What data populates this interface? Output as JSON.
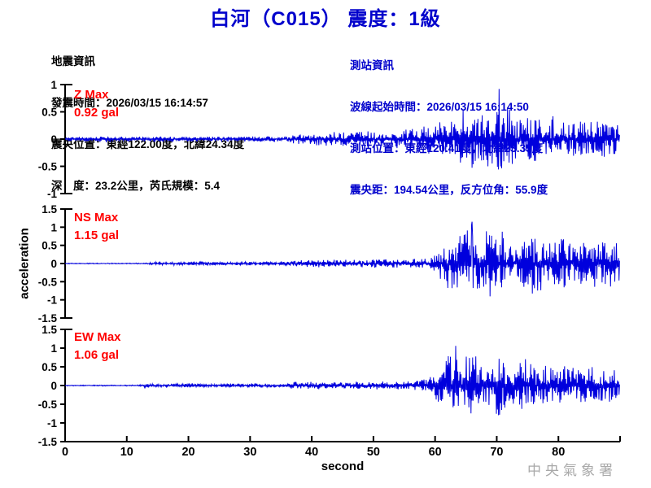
{
  "title": "白河（C015） 震度：1級",
  "quake_info": {
    "heading": "地震資訊",
    "lines": [
      "發震時間：2026/03/15 16:14:57",
      "震央位置：東經122.00度，北緯24.34度",
      "深　度：23.2公里，芮氏規模：5.4"
    ]
  },
  "station_info": {
    "heading": "測站資訊",
    "lines": [
      "波線起始時間：2026/03/15 16:14:50",
      "測站位置：東經120.41度，北緯23.35度",
      "震央距：194.54公里，反方位角：55.9度"
    ]
  },
  "footer": {
    "agency": "中央氣象署"
  },
  "colors": {
    "title_blue": "#0000cc",
    "info_blue": "#0000cc",
    "wave_blue": "#0000dd",
    "max_red": "#ff0000",
    "axis_black": "#000000",
    "agency_gray": "#a9a9a9"
  },
  "chart_data": {
    "type": "line",
    "title": "白河（C015） 震度：1級",
    "xlabel": "second",
    "ylabel": "acceleration",
    "x_range": [
      0,
      90
    ],
    "x_ticks": [
      0,
      10,
      20,
      30,
      40,
      50,
      60,
      70,
      80
    ],
    "grid": false,
    "legend": "none",
    "panels": [
      {
        "channel": "Z",
        "max_label": "Z Max",
        "max_value": "0.92 gal",
        "max_gal": 0.92,
        "peak_time_s": 70.3,
        "ylim": [
          -1,
          1
        ],
        "y_ticks": [
          1,
          0.5,
          0,
          -0.5,
          -1
        ],
        "envelope_gal": [
          [
            0,
            0.025
          ],
          [
            1.5,
            0.04
          ],
          [
            5.5,
            0.055
          ],
          [
            7,
            0.07
          ],
          [
            8,
            0.045
          ],
          [
            14,
            0.05
          ],
          [
            20,
            0.045
          ],
          [
            30,
            0.05
          ],
          [
            36,
            0.05
          ],
          [
            37.5,
            0.09
          ],
          [
            39,
            0.13
          ],
          [
            42,
            0.12
          ],
          [
            46,
            0.13
          ],
          [
            50,
            0.15
          ],
          [
            54,
            0.16
          ],
          [
            57,
            0.2
          ],
          [
            59,
            0.26
          ],
          [
            61,
            0.32
          ],
          [
            63,
            0.38
          ],
          [
            64,
            0.45
          ],
          [
            64.6,
            0.6
          ],
          [
            65.2,
            0.42
          ],
          [
            66.2,
            0.58
          ],
          [
            67,
            0.4
          ],
          [
            68.5,
            0.48
          ],
          [
            69.8,
            0.5
          ],
          [
            70.3,
            0.92
          ],
          [
            70.9,
            0.55
          ],
          [
            71.8,
            0.72
          ],
          [
            72.5,
            0.45
          ],
          [
            74.5,
            0.4
          ],
          [
            76,
            0.45
          ],
          [
            77.5,
            0.36
          ],
          [
            79,
            0.42
          ],
          [
            80.5,
            0.32
          ],
          [
            82,
            0.36
          ],
          [
            84,
            0.3
          ],
          [
            86,
            0.34
          ],
          [
            88,
            0.3
          ],
          [
            90,
            0.28
          ]
        ]
      },
      {
        "channel": "NS",
        "max_label": "NS Max",
        "max_value": "1.15 gal",
        "max_gal": 1.15,
        "peak_time_s": 66,
        "ylim": [
          -1.5,
          1.5
        ],
        "y_ticks": [
          1.5,
          1,
          0.5,
          0,
          -0.5,
          -1,
          -1.5
        ],
        "envelope_gal": [
          [
            0,
            0.012
          ],
          [
            13,
            0.015
          ],
          [
            15,
            0.05
          ],
          [
            22,
            0.055
          ],
          [
            30,
            0.05
          ],
          [
            36,
            0.06
          ],
          [
            38.5,
            0.1
          ],
          [
            42,
            0.11
          ],
          [
            47,
            0.1
          ],
          [
            52,
            0.12
          ],
          [
            56,
            0.13
          ],
          [
            59,
            0.16
          ],
          [
            60.5,
            0.3
          ],
          [
            61.5,
            0.6
          ],
          [
            62.5,
            0.8
          ],
          [
            63.5,
            0.7
          ],
          [
            64.5,
            0.95
          ],
          [
            65.5,
            0.85
          ],
          [
            66,
            1.15
          ],
          [
            67,
            0.75
          ],
          [
            68,
            0.8
          ],
          [
            69,
            0.9
          ],
          [
            70,
            0.7
          ],
          [
            71,
            0.95
          ],
          [
            72,
            0.6
          ],
          [
            73.5,
            0.55
          ],
          [
            75,
            0.8
          ],
          [
            76.5,
            0.9
          ],
          [
            78,
            0.55
          ],
          [
            79.5,
            0.6
          ],
          [
            81,
            0.7
          ],
          [
            82.5,
            0.5
          ],
          [
            84,
            0.6
          ],
          [
            85.5,
            0.65
          ],
          [
            87,
            0.55
          ],
          [
            88.5,
            0.65
          ],
          [
            90,
            0.5
          ]
        ]
      },
      {
        "channel": "EW",
        "max_label": "EW Max",
        "max_value": "1.06 gal",
        "max_gal": 1.06,
        "peak_time_s": 63.3,
        "ylim": [
          -1.5,
          1.5
        ],
        "y_ticks": [
          1.5,
          1,
          0.5,
          0,
          -0.5,
          -1,
          -1.5
        ],
        "envelope_gal": [
          [
            0,
            0.012
          ],
          [
            11,
            0.015
          ],
          [
            13,
            0.05
          ],
          [
            18,
            0.06
          ],
          [
            24,
            0.05
          ],
          [
            28,
            0.06
          ],
          [
            32,
            0.05
          ],
          [
            36,
            0.06
          ],
          [
            37.5,
            0.1
          ],
          [
            41,
            0.1
          ],
          [
            45,
            0.09
          ],
          [
            49,
            0.1
          ],
          [
            53,
            0.11
          ],
          [
            56,
            0.12
          ],
          [
            58,
            0.16
          ],
          [
            59.5,
            0.25
          ],
          [
            60.8,
            0.5
          ],
          [
            62,
            0.8
          ],
          [
            63.3,
            1.06
          ],
          [
            64.2,
            0.6
          ],
          [
            65.2,
            0.75
          ],
          [
            66.3,
            0.9
          ],
          [
            67.2,
            0.55
          ],
          [
            68.5,
            0.6
          ],
          [
            69.8,
            0.85
          ],
          [
            71,
            0.9
          ],
          [
            72,
            0.55
          ],
          [
            73.5,
            0.65
          ],
          [
            75,
            0.7
          ],
          [
            76.5,
            0.5
          ],
          [
            78,
            0.55
          ],
          [
            79.5,
            0.45
          ],
          [
            81,
            0.5
          ],
          [
            83,
            0.42
          ],
          [
            85,
            0.48
          ],
          [
            87,
            0.45
          ],
          [
            90,
            0.4
          ]
        ]
      }
    ]
  }
}
